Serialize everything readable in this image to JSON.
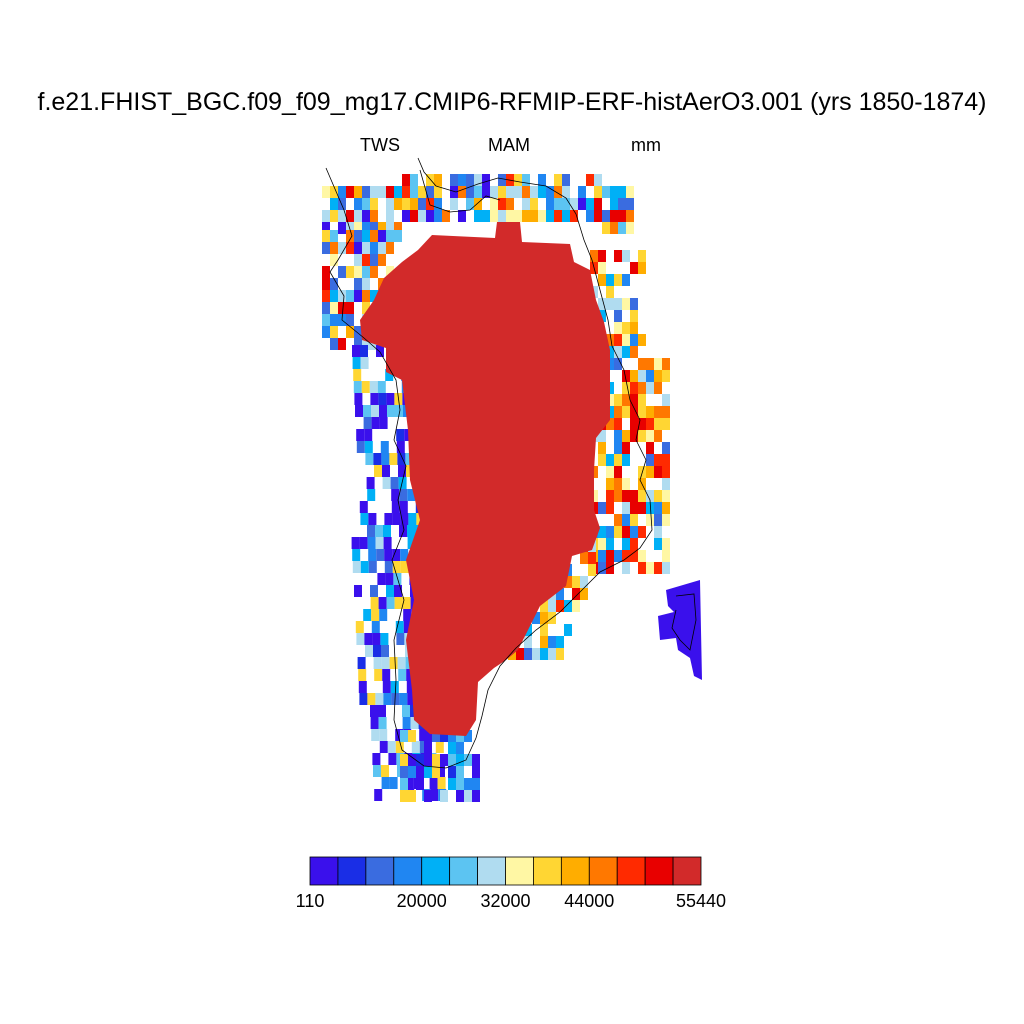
{
  "title": "f.e21.FHIST_BGC.f09_f09_mg17.CMIP6-RFMIP-ERF-histAerO3.001 (yrs 1850-1874)",
  "subtitle": {
    "left": "TWS",
    "center": "MAM",
    "right": "mm"
  },
  "colorbar": {
    "colors": [
      "#3a10ec",
      "#1a2ee6",
      "#3a6ce0",
      "#2086f2",
      "#00b0f6",
      "#5cc4f2",
      "#b0dcf0",
      "#fff7a4",
      "#ffd633",
      "#ffad00",
      "#ff7800",
      "#ff2a00",
      "#e80000",
      "#d22a2a"
    ],
    "labels": [
      "110",
      "20000",
      "32000",
      "44000",
      "55440"
    ],
    "label_slots": [
      0,
      4,
      7,
      10,
      14
    ]
  },
  "map": {
    "type": "filled grid (gridded field over Greenland)",
    "variable": "TWS",
    "season": "MAM",
    "units": "mm",
    "interior_value_class": "55440 (max, dark red)",
    "coast_value_classes": "mixed, mostly 110–20000 (blue/violet) on the west coast, mixed orange/yellow/red on the east coast"
  }
}
